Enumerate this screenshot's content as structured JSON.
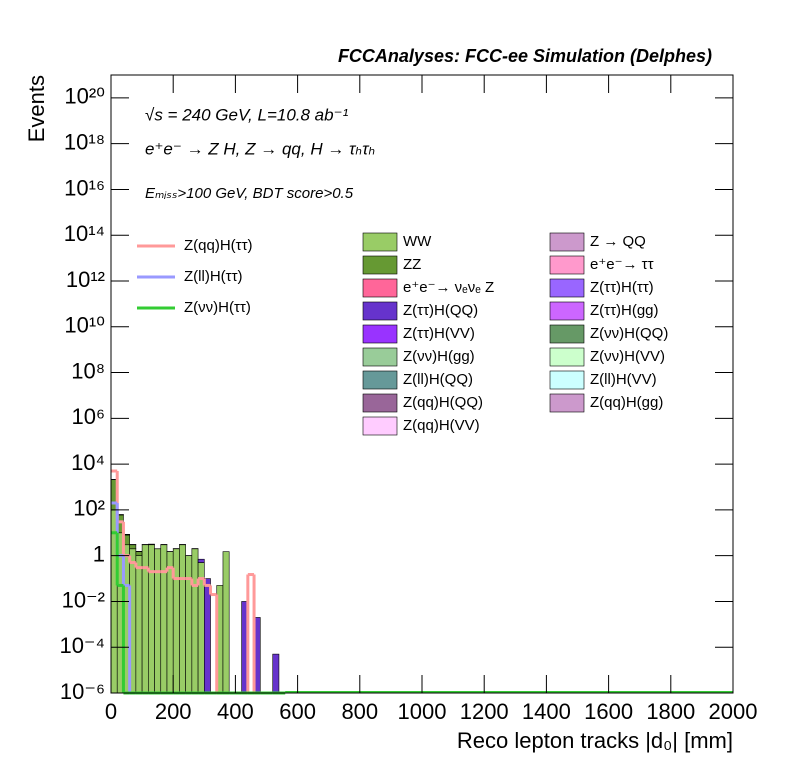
{
  "chart_data": {
    "type": "stacked_histogram",
    "title": "FCCAnalyses: FCC-ee Simulation (Delphes)",
    "annotations": [
      "√s = 240 GeV, L=10.8 ab⁻¹",
      "e⁺e⁻ → Z H, Z → qq, H → τₕτₕ",
      "Eₘᵢₛₛ>100 GeV, BDT score>0.5"
    ],
    "x_label": "Reco lepton tracks |d₀| [mm]",
    "y_label": "Events",
    "log_y": true,
    "xlim": [
      0,
      2000
    ],
    "xticks": [
      0,
      200,
      400,
      600,
      800,
      1000,
      1200,
      1400,
      1600,
      1800,
      2000
    ],
    "ylim": [
      1e-06,
      1e+21
    ],
    "yticks": [
      {
        "value": 1e-06,
        "label": "10⁻⁶"
      },
      {
        "value": 0.0001,
        "label": "10⁻⁴"
      },
      {
        "value": 0.01,
        "label": "10⁻²"
      },
      1,
      {
        "value": 100,
        "label": "10²"
      },
      {
        "value": 10000,
        "label": "10⁴"
      },
      {
        "value": 1000000,
        "label": "10⁶"
      },
      {
        "value": 100000000,
        "label": "10⁸"
      },
      {
        "value": 10000000000,
        "label": "10¹⁰"
      },
      {
        "value": 1000000000000,
        "label": "10¹²"
      },
      {
        "value": 100000000000000,
        "label": "10¹⁴"
      },
      {
        "value": 10000000000000000,
        "label": "10¹⁶"
      },
      {
        "value": 1000000000000000000,
        "label": "10¹⁸"
      },
      {
        "value": 100000000000000000000,
        "label": "10²⁰"
      }
    ],
    "bins": [
      0,
      20,
      40,
      60,
      80,
      100,
      120,
      140,
      160,
      180,
      200,
      220,
      240,
      260,
      280,
      300,
      320,
      340,
      360,
      380,
      400,
      420,
      440,
      460,
      480,
      500,
      520,
      540,
      560
    ],
    "series": [
      {
        "name": "WW",
        "color": "#99cc66",
        "values": [
          100,
          10,
          3,
          2,
          1,
          3,
          3,
          2,
          3,
          1.5,
          2,
          3,
          1,
          2,
          0.5,
          0,
          0,
          0.05,
          1.5,
          0,
          0,
          0,
          0,
          0,
          0,
          0,
          0,
          0
        ]
      },
      {
        "name": "Z → QQ",
        "color": "#cc99cc",
        "values": [
          0,
          0,
          0,
          0,
          0,
          0,
          0,
          0,
          0,
          0,
          0,
          0,
          0,
          0,
          0,
          0,
          0,
          0,
          0,
          0,
          0,
          0,
          0,
          0,
          0,
          0,
          0,
          0
        ]
      },
      {
        "name": "ZZ",
        "color": "#669933",
        "values": [
          2000,
          50,
          5,
          1,
          0.5,
          0,
          0,
          0,
          0,
          0,
          0,
          0,
          0,
          0,
          0,
          0,
          0,
          0,
          0,
          0,
          0,
          0,
          0,
          0,
          0,
          0,
          0,
          0
        ]
      },
      {
        "name": "e⁺e⁻→ ττ",
        "color": "#ff99cc",
        "values": [
          0,
          0,
          0,
          0,
          0,
          0,
          0,
          0,
          0,
          0,
          0,
          0,
          0,
          0,
          0,
          0,
          0,
          0,
          0,
          0,
          0,
          0,
          0,
          0,
          0,
          0,
          0,
          0
        ]
      },
      {
        "name": "e⁺e⁻→ νₑνₑ Z",
        "color": "#ff6699",
        "values": [
          0,
          0,
          0,
          0,
          0,
          0,
          0,
          0,
          0,
          0,
          0,
          0,
          0,
          0,
          0,
          0,
          0,
          0,
          0,
          0,
          0,
          0,
          0,
          0,
          0,
          0,
          0,
          0
        ]
      },
      {
        "name": "Z(ττ)H(ττ)",
        "color": "#9966ff",
        "values": [
          0,
          0,
          0,
          0,
          0,
          0,
          0,
          0,
          0,
          0,
          0,
          0,
          0,
          0,
          0,
          0,
          0,
          0,
          0,
          0,
          0,
          0,
          0,
          0,
          0,
          0,
          0,
          0
        ]
      },
      {
        "name": "Z(ττ)H(QQ)",
        "color": "#6633cc",
        "values": [
          50,
          2,
          0.5,
          0.1,
          0.05,
          0.1,
          0.2,
          0.01,
          0.1,
          0.02,
          0.05,
          0.1,
          0.01,
          0.05,
          0.2,
          0.1,
          0,
          0,
          0,
          0,
          0,
          0.01,
          0,
          0.002,
          0,
          0,
          5e-05,
          0
        ]
      },
      {
        "name": "Z(ττ)H(gg)",
        "color": "#cc66ff",
        "values": [
          0,
          0,
          0,
          0,
          0,
          0,
          0,
          0,
          0,
          0,
          0,
          0,
          0,
          0,
          0,
          0,
          0,
          0,
          0,
          0,
          0,
          0,
          0,
          0,
          0,
          0,
          0,
          0
        ]
      },
      {
        "name": "Z(ττ)H(VV)",
        "color": "#9933ff",
        "values": [
          0,
          0,
          0,
          0,
          0,
          0,
          0,
          0,
          0,
          0,
          0,
          0,
          0,
          0,
          0,
          0,
          0,
          0,
          0,
          0,
          0,
          0,
          0,
          0,
          0,
          0,
          0,
          0
        ]
      },
      {
        "name": "Z(νν)H(QQ)",
        "color": "#669966",
        "values": [
          0,
          0,
          0,
          0,
          0,
          0,
          0,
          0,
          0,
          0,
          0,
          0,
          0,
          0,
          0,
          0,
          0,
          0,
          0,
          0,
          0,
          0,
          0,
          0,
          0,
          0,
          0,
          0
        ]
      },
      {
        "name": "Z(νν)H(gg)",
        "color": "#99cc99",
        "values": [
          0,
          0,
          0,
          0,
          0,
          0,
          0,
          0,
          0,
          0,
          0,
          0,
          0,
          0,
          0,
          0,
          0,
          0,
          0,
          0,
          0,
          0,
          0,
          0,
          0,
          0,
          0,
          0
        ]
      },
      {
        "name": "Z(νν)H(VV)",
        "color": "#ccffcc",
        "values": [
          0,
          0,
          0,
          0,
          0,
          0,
          0,
          0,
          0,
          0,
          0,
          0,
          0,
          0,
          0,
          0,
          0,
          0,
          0,
          0,
          0,
          0,
          0,
          0,
          0,
          0,
          0,
          0
        ]
      },
      {
        "name": "Z(ll)H(QQ)",
        "color": "#669999",
        "values": [
          5,
          0.5,
          0.01,
          0,
          0,
          0,
          0,
          0,
          0,
          0,
          0,
          0,
          0,
          0,
          0,
          0,
          0,
          0,
          0,
          0,
          0,
          0,
          0,
          0,
          0,
          0,
          0,
          0
        ]
      },
      {
        "name": "Z(ll)H(VV)",
        "color": "#ccffff",
        "values": [
          0,
          0,
          0,
          0,
          0,
          0,
          0,
          0,
          0,
          0,
          0,
          0,
          0,
          0,
          0,
          0,
          0,
          0,
          0,
          0,
          0,
          0,
          0,
          0,
          0,
          0,
          0,
          0
        ]
      },
      {
        "name": "Z(qq)H(QQ)",
        "color": "#996699",
        "values": [
          0,
          0,
          0,
          0,
          0,
          0,
          0,
          0,
          0,
          0,
          0,
          0,
          0,
          0,
          0,
          0,
          0,
          0,
          0,
          0,
          0,
          0,
          0,
          0,
          0,
          0,
          0,
          0
        ]
      },
      {
        "name": "Z(qq)H(gg)",
        "color": "#cc99cc",
        "values": [
          0,
          0,
          0,
          0,
          0,
          0,
          0,
          0,
          0,
          0,
          0,
          0,
          0,
          0,
          0,
          0,
          0,
          0,
          0,
          0,
          0,
          0,
          0,
          0,
          0,
          0,
          0,
          0
        ]
      },
      {
        "name": "Z(qq)H(VV)",
        "color": "#ffccff",
        "values": [
          0,
          0,
          0,
          0,
          0,
          0,
          0,
          0,
          0,
          0,
          0,
          0,
          0,
          0,
          0,
          0,
          0,
          0,
          0,
          0,
          0,
          0,
          0,
          0,
          0,
          0,
          0,
          0
        ]
      }
    ],
    "signals": [
      {
        "name": "Z(qq)H(ττ)",
        "color": "#ff9999",
        "values": [
          5000,
          30,
          1,
          0.5,
          0.3,
          0.3,
          0.2,
          0.2,
          0.2,
          0.3,
          0.1,
          0.1,
          0.1,
          0.05,
          0.1,
          0.05,
          0.02,
          0,
          0,
          0,
          0,
          0,
          0.15,
          0,
          0,
          0,
          0,
          0
        ]
      },
      {
        "name": "Z(ll)H(ττ)",
        "color": "#9999ff",
        "values": [
          200,
          1,
          0.05,
          0,
          0,
          0,
          0,
          0,
          0,
          0,
          0,
          0,
          0,
          0,
          0,
          0,
          0,
          0,
          0,
          0,
          0,
          0,
          0,
          0,
          0,
          0,
          0,
          0
        ]
      },
      {
        "name": "Z(νν)H(ττ)",
        "color": "#33cc33",
        "values": [
          10,
          0.05,
          0,
          0,
          0,
          0,
          0,
          0,
          0,
          0,
          0,
          0,
          0,
          0,
          0,
          0,
          0,
          0,
          0,
          0,
          0,
          0,
          0,
          0,
          0,
          0,
          0,
          0
        ]
      }
    ]
  }
}
